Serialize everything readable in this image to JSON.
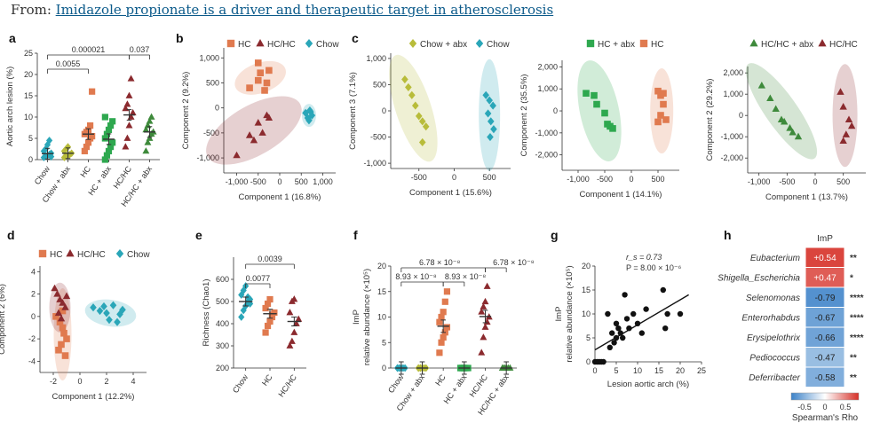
{
  "header": {
    "prefix": "From: ",
    "article_title": "Imidazole propionate is a driver and therapeutic target in atherosclerosis"
  },
  "colors": {
    "HC": "#e07a4f",
    "HC/HC": "#8b2a2e",
    "Chow": "#2aa6b8",
    "Chow + abx": "#b8bc3a",
    "HC + abx": "#2ea84f",
    "HC/HC + abx": "#3e8a3b"
  },
  "chart_data": [
    {
      "panel": "a",
      "type": "scatter",
      "ylabel": "Aortic arch lesion (%)",
      "ylim": [
        0,
        25
      ],
      "yticks": [
        0,
        5,
        10,
        15,
        20,
        25
      ],
      "categories": [
        "Chow",
        "Chow + abx",
        "HC",
        "HC + abx",
        "HC/HC",
        "HC/HC + abx"
      ],
      "points": [
        [
          0.5,
          0.8,
          1,
          1.2,
          1.5,
          2,
          2.5,
          3.5,
          4.5,
          0.7
        ],
        [
          0.5,
          0.8,
          1,
          1.2,
          1.5,
          2,
          2.5,
          3
        ],
        [
          2,
          3,
          4,
          5,
          5.5,
          6,
          6.5,
          7,
          8,
          16
        ],
        [
          0,
          1,
          2,
          3,
          4,
          5,
          6,
          7,
          8,
          9,
          10
        ],
        [
          3,
          5,
          8,
          10,
          11,
          12,
          13,
          15,
          19
        ],
        [
          2,
          4,
          5,
          6,
          6.5,
          7,
          8,
          9,
          10
        ]
      ],
      "means": [
        1.4,
        1.5,
        6,
        4.8,
        10.5,
        6.5
      ],
      "brackets": [
        {
          "from": "Chow",
          "to": "HC",
          "label": "0.0055"
        },
        {
          "from": "Chow",
          "to": "HC/HC",
          "label": "0.000021"
        },
        {
          "from": "HC/HC",
          "to": "HC/HC + abx",
          "label": "0.037"
        }
      ]
    },
    {
      "panel": "b",
      "type": "scatter",
      "xlabel": "Component 1 (16.8%)",
      "ylabel": "Component 2 (9.2%)",
      "xlim": [
        -1300,
        1300
      ],
      "ylim": [
        -1300,
        1200
      ],
      "xticks": [
        "-1,000",
        "-500",
        "0",
        "500",
        "1,000"
      ],
      "yticks": [
        "1,000",
        "500",
        "0",
        "-500",
        "-1,000"
      ],
      "legend": [
        "HC",
        "HC/HC",
        "Chow"
      ],
      "series": [
        {
          "name": "HC",
          "x": [
            -700,
            -500,
            -450,
            -350,
            -300,
            -250,
            -500
          ],
          "y": [
            400,
            550,
            700,
            350,
            500,
            750,
            900
          ]
        },
        {
          "name": "HC/HC",
          "x": [
            -1000,
            -700,
            -600,
            -500,
            -400,
            -300,
            -250
          ],
          "y": [
            -950,
            -550,
            -650,
            -300,
            -500,
            -150,
            -200
          ]
        },
        {
          "name": "Chow",
          "x": [
            600,
            650,
            700,
            750,
            680,
            720
          ],
          "y": [
            -100,
            -200,
            -50,
            -150,
            -250,
            -80
          ]
        }
      ]
    },
    {
      "panel": "c1",
      "type": "scatter",
      "xlabel": "Component 1 (15.6%)",
      "ylabel": "Component 3 (7.1%)",
      "xlim": [
        -900,
        800
      ],
      "ylim": [
        -1100,
        1100
      ],
      "xticks": [
        "-500",
        "0",
        "500"
      ],
      "yticks": [
        "1,000",
        "500",
        "0",
        "-500",
        "-1,000"
      ],
      "legend": [
        "Chow + abx",
        "Chow"
      ],
      "series": [
        {
          "name": "Chow + abx",
          "x": [
            -700,
            -650,
            -600,
            -550,
            -500,
            -450,
            -400,
            -450
          ],
          "y": [
            600,
            450,
            300,
            100,
            -100,
            -200,
            -300,
            -600
          ]
        },
        {
          "name": "Chow",
          "x": [
            450,
            500,
            550,
            480,
            520,
            560,
            510
          ],
          "y": [
            300,
            200,
            100,
            -50,
            -200,
            -350,
            -500
          ]
        }
      ]
    },
    {
      "panel": "c2",
      "type": "scatter",
      "xlabel": "Component 1 (14.1%)",
      "ylabel": "Component 2 (35.5%)",
      "xlim": [
        -1300,
        900
      ],
      "ylim": [
        -2700,
        2300
      ],
      "xticks": [
        "-1,000",
        "-500",
        "0",
        "500"
      ],
      "yticks": [
        "2,000",
        "1,000",
        "0",
        "-1,000",
        "-2,000"
      ],
      "legend": [
        "HC + abx",
        "HC"
      ],
      "series": [
        {
          "name": "HC + abx",
          "x": [
            -850,
            -700,
            -650,
            -500,
            -450,
            -400,
            -350
          ],
          "y": [
            800,
            700,
            300,
            -100,
            -600,
            -700,
            -800
          ]
        },
        {
          "name": "HC",
          "x": [
            500,
            550,
            600,
            650,
            500,
            550,
            600
          ],
          "y": [
            900,
            700,
            300,
            -400,
            -500,
            -200,
            800
          ]
        }
      ]
    },
    {
      "panel": "c3",
      "type": "scatter",
      "xlabel": "Component 1 (13.7%)",
      "ylabel": "Component 2 (29.2%)",
      "xlim": [
        -1200,
        900
      ],
      "ylim": [
        -2700,
        2300
      ],
      "xticks": [
        "-1,000",
        "-500",
        "0",
        "500"
      ],
      "yticks": [
        "2,000",
        "1,000",
        "0",
        "-1,000",
        "-2,000"
      ],
      "legend": [
        "HC/HC + abx",
        "HC/HC"
      ],
      "series": [
        {
          "name": "HC/HC + abx",
          "x": [
            -950,
            -800,
            -700,
            -600,
            -550,
            -450,
            -400,
            -300
          ],
          "y": [
            1400,
            800,
            300,
            -200,
            -300,
            -600,
            -800,
            -1000
          ]
        },
        {
          "name": "HC/HC",
          "x": [
            450,
            500,
            600,
            650,
            550,
            500
          ],
          "y": [
            1100,
            400,
            -200,
            -500,
            -900,
            -1200
          ]
        }
      ]
    },
    {
      "panel": "d",
      "type": "scatter",
      "xlabel": "Component 1 (12.2%)",
      "ylabel": "Component 2 (6%)",
      "xlim": [
        -3,
        5
      ],
      "ylim": [
        -5,
        4.5
      ],
      "xticks": [
        "-2",
        "0",
        "2",
        "4"
      ],
      "yticks": [
        "4",
        "2",
        "0",
        "-2",
        "-4"
      ],
      "legend": [
        "HC",
        "HC/HC",
        "Chow"
      ],
      "series": [
        {
          "name": "HC",
          "x": [
            -1.8,
            -1.5,
            -1.3,
            -1.2,
            -1.0,
            -1.4,
            -1.6,
            -1.1,
            -1.3
          ],
          "y": [
            0,
            -0.5,
            -1,
            -1.5,
            -2,
            -2.5,
            -3,
            -3.5,
            0.5
          ]
        },
        {
          "name": "HC/HC",
          "x": [
            -1.9,
            -1.7,
            -1.5,
            -1.3,
            -1.1,
            -1.6,
            -1.4,
            -1.0
          ],
          "y": [
            2.5,
            2,
            1.5,
            1.2,
            0.8,
            0.3,
            -0.2,
            1.8
          ]
        },
        {
          "name": "Chow",
          "x": [
            1,
            1.5,
            2,
            2.5,
            3,
            2.2,
            2.8,
            1.8,
            3.2
          ],
          "y": [
            0.8,
            0.5,
            0.3,
            1,
            0.2,
            -0.3,
            -0.5,
            0.9,
            0.6
          ]
        }
      ]
    },
    {
      "panel": "e",
      "type": "scatter",
      "ylabel": "Richness (Chao1)",
      "ylim": [
        200,
        700
      ],
      "yticks": [
        200,
        300,
        400,
        500,
        600
      ],
      "categories": [
        "Chow",
        "HC",
        "HC/HC"
      ],
      "points": [
        [
          430,
          460,
          480,
          500,
          510,
          530,
          550,
          570,
          520,
          490
        ],
        [
          360,
          390,
          410,
          430,
          450,
          470,
          490,
          510,
          440
        ],
        [
          300,
          320,
          360,
          400,
          420,
          450,
          500,
          510
        ]
      ],
      "means": [
        500,
        445,
        410
      ],
      "brackets": [
        {
          "from": "Chow",
          "to": "HC",
          "label": "0.0077"
        },
        {
          "from": "Chow",
          "to": "HC/HC",
          "label": "0.0039"
        }
      ]
    },
    {
      "panel": "f",
      "type": "scatter",
      "ylabel": "ImP",
      "ylabel2": "relative abundance (×10⁵)",
      "ylim": [
        0,
        20
      ],
      "yticks": [
        0,
        5,
        10,
        15,
        20
      ],
      "categories": [
        "Chow",
        "Chow + abx",
        "HC",
        "HC + abx",
        "HC/HC",
        "HC/HC + abx"
      ],
      "points": [
        [
          0,
          0,
          0,
          0,
          0,
          0,
          0,
          0
        ],
        [
          0,
          0,
          0,
          0,
          0,
          0,
          0,
          0
        ],
        [
          3,
          5,
          6,
          7,
          8,
          9,
          10,
          11,
          13,
          15
        ],
        [
          0,
          0,
          0,
          0,
          0,
          0,
          0,
          0
        ],
        [
          3,
          6,
          8,
          9,
          10,
          11,
          12,
          13,
          16
        ],
        [
          0,
          0,
          0,
          0,
          0,
          0,
          0,
          0
        ]
      ],
      "means": [
        0,
        0,
        8.2,
        0,
        10.1,
        0
      ],
      "brackets": [
        {
          "from": "Chow",
          "to": "HC",
          "label": "8.93 × 10⁻⁸"
        },
        {
          "from": "HC",
          "to": "HC + abx",
          "label": "8.93 × 10⁻⁸"
        },
        {
          "from": "Chow",
          "to": "HC/HC",
          "label": "6.78 × 10⁻⁸"
        },
        {
          "from": "HC/HC",
          "to": "HC/HC + abx",
          "label": "6.78 × 10⁻⁸"
        }
      ]
    },
    {
      "panel": "g",
      "type": "scatter",
      "xlabel": "Lesion aortic arch (%)",
      "ylabel": "ImP",
      "ylabel2": "relative abundance (×10⁵)",
      "xlim": [
        0,
        25
      ],
      "ylim": [
        0,
        20
      ],
      "xticks": [
        0,
        5,
        10,
        15,
        20,
        25
      ],
      "yticks": [
        0,
        5,
        10,
        15,
        20
      ],
      "annotation": [
        "r_s = 0.73",
        "P = 8.00 × 10⁻⁶"
      ],
      "x": [
        0,
        0.5,
        1,
        1.5,
        2,
        3,
        3.5,
        4,
        4.5,
        5,
        5,
        5.5,
        6,
        6.5,
        7,
        7.5,
        8,
        9,
        10,
        11,
        12,
        16,
        16.5,
        17,
        20
      ],
      "y": [
        0,
        0,
        0,
        0,
        0,
        10,
        3,
        6,
        4,
        8,
        5,
        7,
        6,
        5,
        14,
        9,
        7,
        10,
        8,
        6,
        11,
        15,
        7,
        10,
        10
      ],
      "fit": {
        "x": [
          0,
          22
        ],
        "y": [
          2.5,
          14
        ]
      }
    },
    {
      "panel": "h",
      "type": "heatmap",
      "column": "ImP",
      "cbar_label": "Spearman's Rho",
      "cbar_ticks": [
        "-0.5",
        "0",
        "0.5"
      ],
      "rows": [
        {
          "name": "Eubacterium",
          "value": "+0.54",
          "sig": "**"
        },
        {
          "name": "Shigella_Escherichia",
          "value": "+0.47",
          "sig": "*"
        },
        {
          "name": "Selenomonas",
          "value": "-0.79",
          "sig": "****"
        },
        {
          "name": "Enterorhabdus",
          "value": "-0.67",
          "sig": "****"
        },
        {
          "name": "Erysipelothrix",
          "value": "-0.66",
          "sig": "****"
        },
        {
          "name": "Pediococcus",
          "value": "-0.47",
          "sig": "**"
        },
        {
          "name": "Deferribacter",
          "value": "-0.58",
          "sig": "**"
        }
      ]
    }
  ]
}
